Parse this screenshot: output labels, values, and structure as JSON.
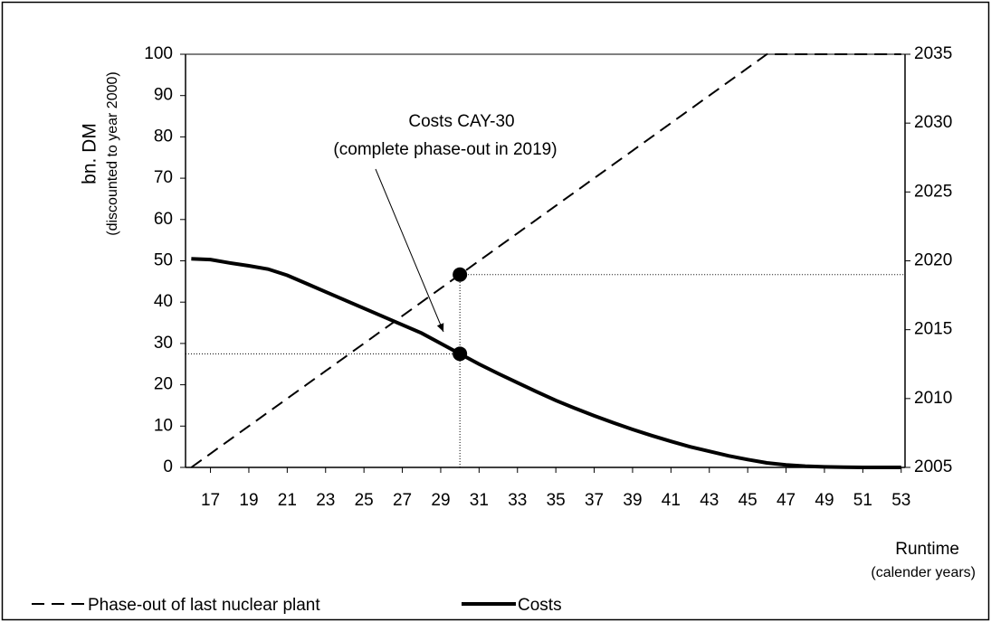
{
  "chart_data": {
    "type": "line",
    "ylabel": "bn. DM",
    "ylabel_note": "(discounted to year 2000)",
    "xlabel": "Runtime",
    "xlabel_note": "(calender years)",
    "annotations": [
      "Costs CAY-30",
      "(complete phase-out in 2019)"
    ],
    "x": [
      16,
      17,
      18,
      19,
      20,
      21,
      22,
      23,
      24,
      25,
      26,
      27,
      28,
      29,
      30,
      31,
      32,
      33,
      34,
      35,
      36,
      37,
      38,
      39,
      40,
      41,
      42,
      43,
      44,
      45,
      46,
      47,
      48,
      49,
      50,
      51,
      52,
      53
    ],
    "series": [
      {
        "name": "Phase-out of last nuclear plant",
        "color": "#000000",
        "dash": true,
        "axis": "y2",
        "values": [
          2005,
          2006,
          2007,
          2008,
          2009,
          2010,
          2011,
          2012,
          2013,
          2014,
          2015,
          2016,
          2017,
          2018,
          2019,
          2020,
          2021,
          2022,
          2023,
          2024,
          2025,
          2026,
          2027,
          2028,
          2029,
          2030,
          2031,
          2032,
          2033,
          2034,
          2035,
          2035,
          2035,
          2035,
          2035,
          2035,
          2035,
          2035
        ]
      },
      {
        "name": "Costs",
        "color": "#000000",
        "dash": false,
        "axis": "y",
        "values": [
          50.5,
          50.3,
          49.5,
          48.8,
          48,
          46.5,
          44.5,
          42.5,
          40.5,
          38.5,
          36.5,
          34.5,
          32.5,
          30,
          27.5,
          25,
          22.7,
          20.5,
          18.3,
          16.2,
          14.3,
          12.5,
          10.8,
          9.2,
          7.7,
          6.3,
          5,
          3.9,
          2.8,
          1.9,
          1.1,
          0.6,
          0.3,
          0.15,
          0.05,
          0,
          0,
          0
        ]
      }
    ],
    "highlight_index": 14,
    "xlim": [
      15.7,
      53.2
    ],
    "xticks": [
      17,
      19,
      21,
      23,
      25,
      27,
      29,
      31,
      33,
      35,
      37,
      39,
      41,
      43,
      45,
      47,
      49,
      51,
      53
    ],
    "ylim": [
      0,
      100
    ],
    "yticks": [
      0,
      10,
      20,
      30,
      40,
      50,
      60,
      70,
      80,
      90,
      100
    ],
    "y2lim": [
      2005,
      2035
    ],
    "y2ticks": [
      2005,
      2010,
      2015,
      2020,
      2025,
      2030,
      2035
    ],
    "legend": "bottom"
  }
}
